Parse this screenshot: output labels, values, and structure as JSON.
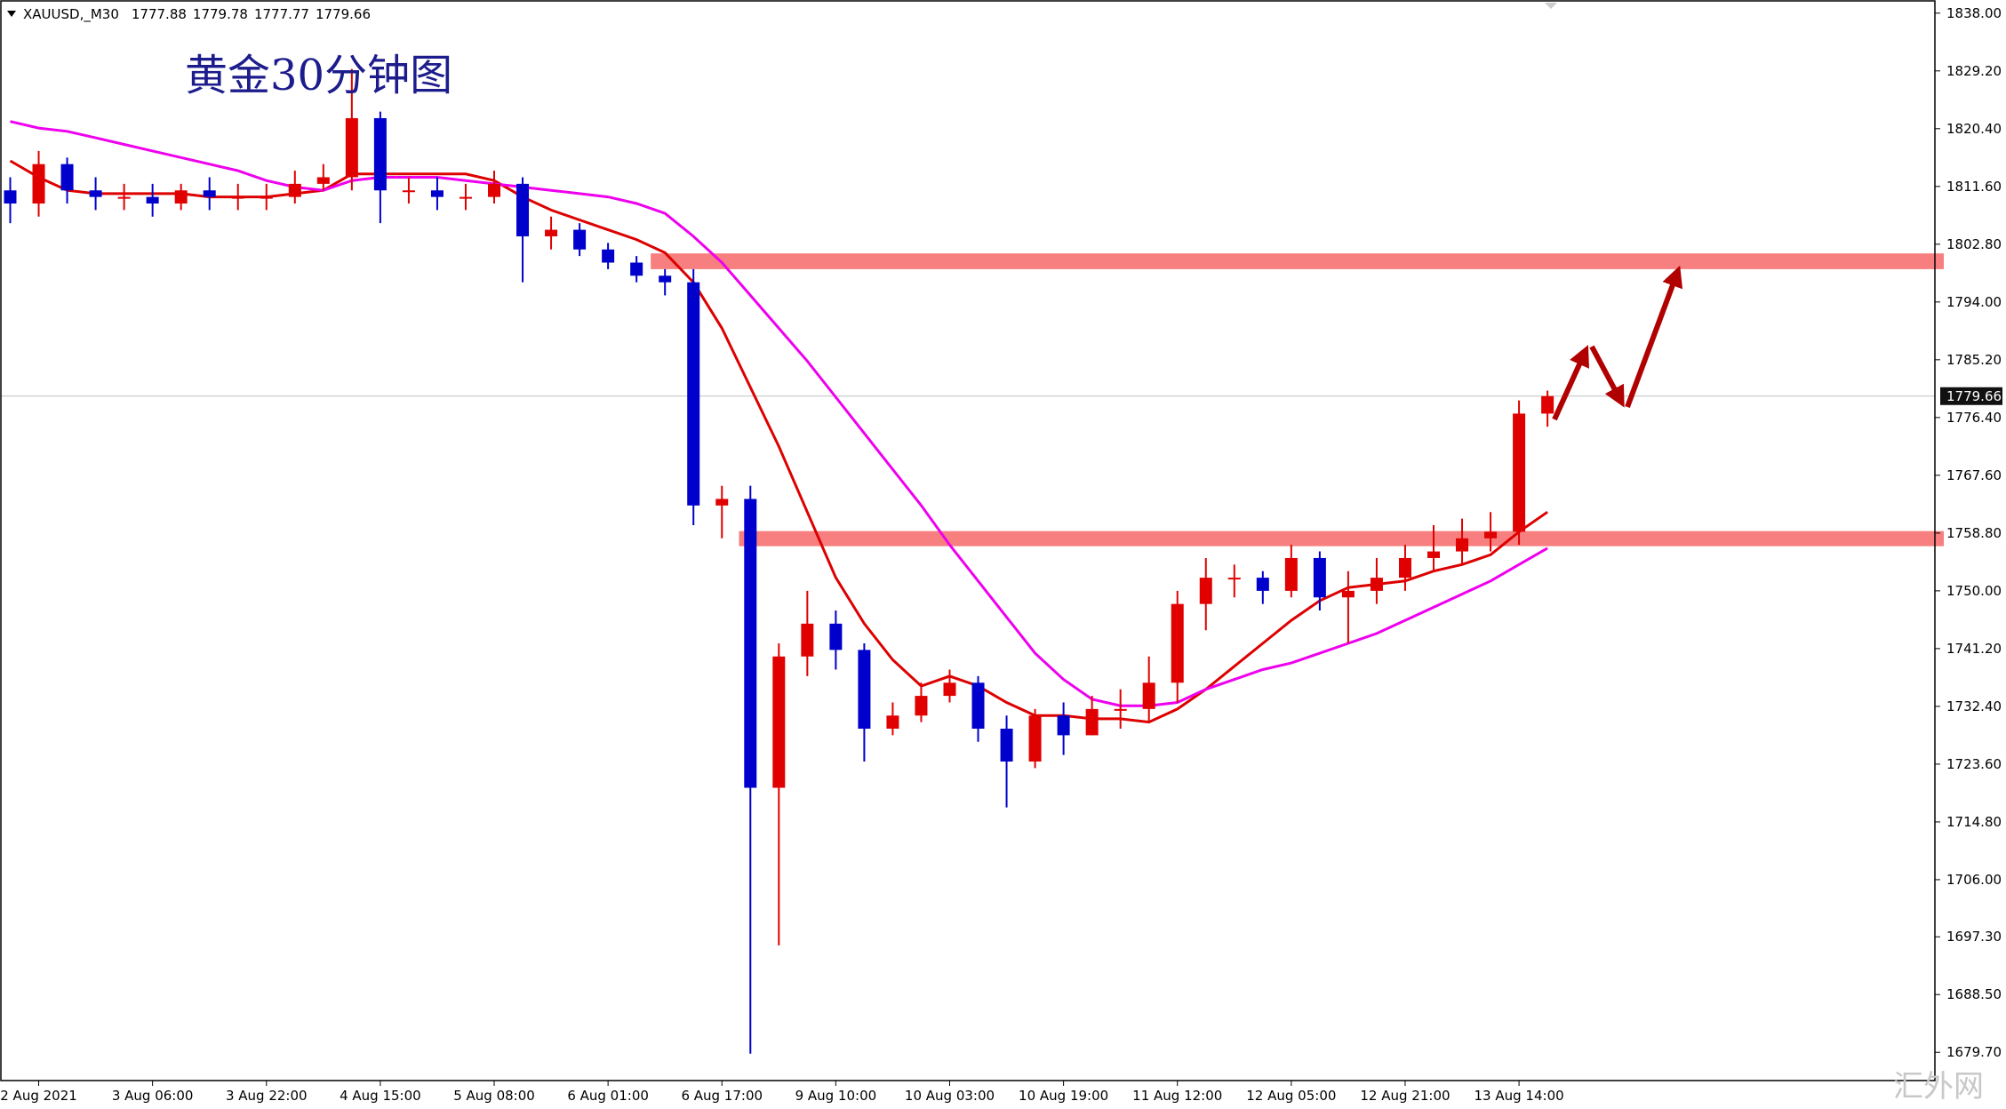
{
  "chart_data": {
    "type": "candlestick",
    "header": {
      "symbol": "XAUUSD,_M30",
      "ohlc": [
        1777.88,
        1779.78,
        1777.77,
        1779.66
      ]
    },
    "annotation": "黄金30分钟图",
    "watermark": "汇外网",
    "categories": [
      null,
      "2 Aug 2021",
      null,
      null,
      null,
      "3 Aug 06:00",
      null,
      null,
      null,
      "3 Aug 22:00",
      null,
      null,
      null,
      "4 Aug 15:00",
      null,
      null,
      null,
      "5 Aug 08:00",
      null,
      null,
      null,
      "6 Aug 01:00",
      null,
      null,
      null,
      "6 Aug 17:00",
      null,
      null,
      null,
      "9 Aug 10:00",
      null,
      null,
      null,
      "10 Aug 03:00",
      null,
      null,
      null,
      "10 Aug 19:00",
      null,
      null,
      null,
      "11 Aug 12:00",
      null,
      null,
      null,
      "12 Aug 05:00",
      null,
      null,
      null,
      "12 Aug 21:00",
      null,
      null,
      null,
      "13 Aug 14:00",
      null
    ],
    "open": [
      1811,
      1809,
      1815,
      1811,
      1810,
      1810,
      1809,
      1811,
      1810,
      1810,
      1810,
      1812,
      1813,
      1822,
      1811,
      1811,
      1810,
      1810,
      1812,
      1804,
      1805,
      1802,
      1800,
      1798,
      1797,
      1763,
      1764,
      1720,
      1740,
      1745,
      1741,
      1729,
      1731,
      1734,
      1736,
      1729,
      1724,
      1731,
      1728,
      1732,
      1732,
      1736,
      1748,
      1752,
      1752,
      1750,
      1755,
      1749,
      1750,
      1752,
      1755,
      1756,
      1758,
      1759,
      1777
    ],
    "high": [
      1813,
      1817,
      1816,
      1813,
      1812,
      1812,
      1812,
      1813,
      1812,
      1812,
      1814,
      1815,
      1829.5,
      1823,
      1813,
      1813,
      1812,
      1814,
      1813,
      1807,
      1806,
      1803,
      1801,
      1799,
      1799,
      1766,
      1766,
      1742,
      1750,
      1747,
      1742,
      1733,
      1736,
      1738,
      1737,
      1731,
      1732,
      1733,
      1734,
      1735,
      1740,
      1750,
      1755,
      1754,
      1753,
      1757,
      1756,
      1753,
      1755,
      1757,
      1760,
      1761,
      1762,
      1779,
      1780.5
    ],
    "low": [
      1806,
      1807,
      1809,
      1808,
      1808,
      1807,
      1808,
      1808,
      1808,
      1808,
      1809,
      1811,
      1811,
      1806,
      1809,
      1808,
      1808,
      1809,
      1797,
      1802,
      1801,
      1799,
      1797,
      1795,
      1760,
      1758,
      1679.5,
      1696,
      1737,
      1738,
      1724,
      1728,
      1730,
      1733,
      1727,
      1717,
      1723,
      1725,
      1728,
      1729,
      1730,
      1733,
      1744,
      1749,
      1748,
      1749,
      1747,
      1742,
      1748,
      1750,
      1753,
      1754,
      1756,
      1757,
      1775
    ],
    "close": [
      1809,
      1815,
      1811,
      1810,
      1810,
      1809,
      1811,
      1810,
      1810,
      1810,
      1812,
      1813,
      1822,
      1811,
      1811,
      1810,
      1810,
      1812,
      1804,
      1805,
      1802,
      1800,
      1798,
      1797,
      1763,
      1764,
      1720,
      1740,
      1745,
      1741,
      1729,
      1731,
      1734,
      1736,
      1729,
      1724,
      1731,
      1728,
      1732,
      1732,
      1736,
      1748,
      1752,
      1752,
      1750,
      1755,
      1749,
      1750,
      1752,
      1755,
      1756,
      1758,
      1759,
      1777,
      1779.66
    ],
    "up_color": "#e00000",
    "down_color": "#0000cc",
    "lines": [
      {
        "color": "#dd0000",
        "values": [
          1815.5,
          1813,
          1811,
          1810.5,
          1810.5,
          1810.5,
          1810.5,
          1810,
          1810,
          1810,
          1810.5,
          1811,
          1813.5,
          1813.5,
          1813.5,
          1813.5,
          1813.5,
          1812.5,
          1810,
          1808,
          1806.5,
          1805,
          1803.5,
          1801.5,
          1797,
          1790,
          1781,
          1772,
          1762,
          1752,
          1745,
          1739.5,
          1735.5,
          1737,
          1735.5,
          1733,
          1731,
          1731,
          1730.5,
          1730.5,
          1730,
          1732,
          1735,
          1738.5,
          1742,
          1745.5,
          1748.5,
          1750.5,
          1751,
          1751.5,
          1753,
          1754,
          1755.5,
          1759,
          1762
        ]
      },
      {
        "color": "#ee00ee",
        "values": [
          1821.5,
          1820.5,
          1820,
          1819,
          1818,
          1817,
          1816,
          1815,
          1814,
          1812.5,
          1811.5,
          1811,
          1812.5,
          1813,
          1813,
          1813,
          1812.5,
          1812,
          1811.5,
          1811,
          1810.5,
          1810,
          1809,
          1807.5,
          1804,
          1800,
          1795,
          1790,
          1785,
          1779.5,
          1774,
          1768.5,
          1763,
          1757,
          1751.5,
          1746,
          1740.5,
          1736.5,
          1733.5,
          1732.5,
          1732.5,
          1733,
          1735,
          1736.5,
          1738,
          1739,
          1740.5,
          1742,
          1743.5,
          1745.5,
          1747.5,
          1749.5,
          1751.5,
          1754,
          1756.5
        ]
      }
    ],
    "zones": [
      {
        "low": 1799,
        "high": 1801.4,
        "start_index": 22.5,
        "color": "#f77f7f"
      },
      {
        "low": 1756.8,
        "high": 1759.1,
        "start_index": 25.6,
        "color": "#f77f7f"
      }
    ],
    "last": 1779.66,
    "ylim": [
      1675.4,
      1840
    ],
    "yticks": [
      {
        "value": 1838,
        "label": "1838.00"
      },
      {
        "value": 1829.2,
        "label": "1829.20"
      },
      {
        "value": 1820.4,
        "label": "1820.40"
      },
      {
        "value": 1811.6,
        "label": "1811.60"
      },
      {
        "value": 1802.8,
        "label": "1802.80"
      },
      {
        "value": 1794,
        "label": "1794.00"
      },
      {
        "value": 1785.2,
        "label": "1785.20"
      },
      {
        "value": 1776.4,
        "label": "1776.40"
      },
      {
        "value": 1767.6,
        "label": "1767.60"
      },
      {
        "value": 1758.8,
        "label": "1758.80"
      },
      {
        "value": 1750,
        "label": "1750.00"
      },
      {
        "value": 1741.2,
        "label": "1741.20"
      },
      {
        "value": 1732.4,
        "label": "1732.40"
      },
      {
        "value": 1723.6,
        "label": "1723.60"
      },
      {
        "value": 1714.8,
        "label": "1714.80"
      },
      {
        "value": 1706,
        "label": "1706.00"
      },
      {
        "value": 1697.3,
        "label": "1697.30"
      },
      {
        "value": 1688.5,
        "label": "1688.50"
      },
      {
        "value": 1679.7,
        "label": "1679.70"
      }
    ]
  }
}
